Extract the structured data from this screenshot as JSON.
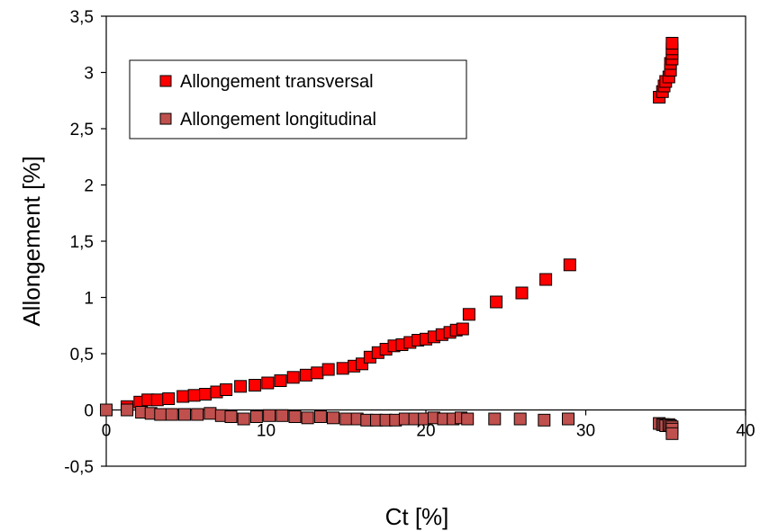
{
  "chart_data": {
    "type": "scatter",
    "xlabel": "Ct [%]",
    "ylabel": "Allongement [%]",
    "xlim": [
      0,
      40
    ],
    "ylim": [
      -0.5,
      3.5
    ],
    "x_ticks": [
      "0",
      "10",
      "20",
      "30",
      "40"
    ],
    "y_ticks": [
      "-0,5",
      "0",
      "0,5",
      "1",
      "1,5",
      "2",
      "2,5",
      "3",
      "3,5"
    ],
    "grid": false,
    "legend_position": "top-left",
    "series": [
      {
        "name": "Allongement transversal",
        "color": "#ff0000",
        "points": [
          [
            0,
            0.0
          ],
          [
            1.3,
            0.03
          ],
          [
            2.1,
            0.07
          ],
          [
            2.6,
            0.09
          ],
          [
            3.2,
            0.09
          ],
          [
            3.9,
            0.1
          ],
          [
            4.8,
            0.12
          ],
          [
            5.5,
            0.13
          ],
          [
            6.2,
            0.14
          ],
          [
            6.9,
            0.16
          ],
          [
            7.5,
            0.18
          ],
          [
            8.4,
            0.21
          ],
          [
            9.3,
            0.22
          ],
          [
            10.1,
            0.24
          ],
          [
            10.9,
            0.26
          ],
          [
            11.7,
            0.29
          ],
          [
            12.5,
            0.31
          ],
          [
            13.2,
            0.33
          ],
          [
            13.9,
            0.36
          ],
          [
            14.8,
            0.37
          ],
          [
            15.5,
            0.39
          ],
          [
            16.0,
            0.41
          ],
          [
            16.5,
            0.47
          ],
          [
            17.0,
            0.51
          ],
          [
            17.5,
            0.54
          ],
          [
            18.0,
            0.57
          ],
          [
            18.5,
            0.58
          ],
          [
            19.0,
            0.6
          ],
          [
            19.5,
            0.62
          ],
          [
            20.0,
            0.63
          ],
          [
            20.5,
            0.65
          ],
          [
            21.0,
            0.67
          ],
          [
            21.5,
            0.69
          ],
          [
            21.9,
            0.71
          ],
          [
            22.3,
            0.72
          ],
          [
            22.7,
            0.85
          ],
          [
            24.4,
            0.96
          ],
          [
            26.0,
            1.04
          ],
          [
            27.5,
            1.16
          ],
          [
            29.0,
            1.29
          ],
          [
            34.6,
            2.78
          ],
          [
            34.8,
            2.83
          ],
          [
            34.9,
            2.88
          ],
          [
            35.0,
            2.92
          ],
          [
            35.2,
            2.96
          ],
          [
            35.3,
            3.02
          ],
          [
            35.3,
            3.08
          ],
          [
            35.4,
            3.12
          ],
          [
            35.4,
            3.17
          ],
          [
            35.4,
            3.21
          ],
          [
            35.4,
            3.26
          ]
        ]
      },
      {
        "name": "Allongement longitudinal",
        "color": "#c0504d",
        "points": [
          [
            0,
            0.0
          ],
          [
            1.3,
            0.0
          ],
          [
            2.2,
            -0.02
          ],
          [
            2.8,
            -0.03
          ],
          [
            3.4,
            -0.04
          ],
          [
            4.1,
            -0.04
          ],
          [
            4.9,
            -0.04
          ],
          [
            5.7,
            -0.04
          ],
          [
            6.5,
            -0.03
          ],
          [
            7.2,
            -0.05
          ],
          [
            7.8,
            -0.06
          ],
          [
            8.6,
            -0.08
          ],
          [
            9.4,
            -0.06
          ],
          [
            10.2,
            -0.05
          ],
          [
            11.0,
            -0.05
          ],
          [
            11.8,
            -0.06
          ],
          [
            12.6,
            -0.07
          ],
          [
            13.4,
            -0.06
          ],
          [
            14.2,
            -0.07
          ],
          [
            15.0,
            -0.08
          ],
          [
            15.7,
            -0.08
          ],
          [
            16.3,
            -0.09
          ],
          [
            16.9,
            -0.09
          ],
          [
            17.5,
            -0.09
          ],
          [
            18.1,
            -0.09
          ],
          [
            18.7,
            -0.08
          ],
          [
            19.3,
            -0.08
          ],
          [
            19.9,
            -0.08
          ],
          [
            20.5,
            -0.07
          ],
          [
            21.1,
            -0.08
          ],
          [
            21.7,
            -0.08
          ],
          [
            22.2,
            -0.07
          ],
          [
            22.6,
            -0.08
          ],
          [
            24.3,
            -0.08
          ],
          [
            25.9,
            -0.08
          ],
          [
            27.4,
            -0.09
          ],
          [
            28.9,
            -0.08
          ],
          [
            34.6,
            -0.12
          ],
          [
            34.8,
            -0.13
          ],
          [
            34.9,
            -0.13
          ],
          [
            35.0,
            -0.14
          ],
          [
            35.2,
            -0.13
          ],
          [
            35.3,
            -0.14
          ],
          [
            35.4,
            -0.15
          ],
          [
            35.4,
            -0.17
          ],
          [
            35.4,
            -0.21
          ]
        ]
      }
    ]
  }
}
